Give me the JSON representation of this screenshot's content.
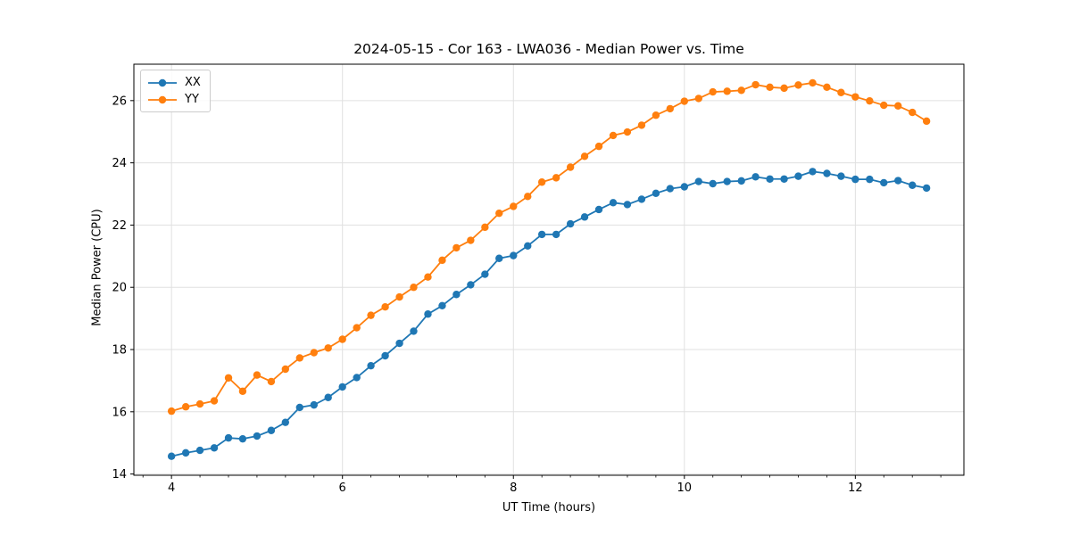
{
  "chart_data": {
    "type": "line",
    "title": "2024-05-15 - Cor 163 - LWA036 - Median Power vs. Time",
    "xlabel": "UT Time (hours)",
    "ylabel": "Median Power (CPU)",
    "xlim": [
      3.56,
      13.27
    ],
    "ylim": [
      13.96,
      27.17
    ],
    "xticks": [
      4,
      6,
      8,
      10,
      12
    ],
    "yticks": [
      14,
      16,
      18,
      20,
      22,
      24,
      26
    ],
    "minor_xtick_step": 0.3333,
    "grid": true,
    "grid_color": "#e0e0e0",
    "legend_position": "upper-left",
    "x": [
      4.0,
      4.167,
      4.333,
      4.5,
      4.667,
      4.833,
      5.0,
      5.167,
      5.333,
      5.5,
      5.667,
      5.833,
      6.0,
      6.167,
      6.333,
      6.5,
      6.667,
      6.833,
      7.0,
      7.167,
      7.333,
      7.5,
      7.667,
      7.833,
      8.0,
      8.167,
      8.333,
      8.5,
      8.667,
      8.833,
      9.0,
      9.167,
      9.333,
      9.5,
      9.667,
      9.833,
      10.0,
      10.167,
      10.333,
      10.5,
      10.667,
      10.833,
      11.0,
      11.167,
      11.333,
      11.5,
      11.667,
      11.833,
      12.0,
      12.167,
      12.333,
      12.5,
      12.667,
      12.833
    ],
    "series": [
      {
        "name": "XX",
        "color": "#1f77b4",
        "marker": "circle",
        "values": [
          14.57,
          14.68,
          14.76,
          14.84,
          15.16,
          15.13,
          15.22,
          15.4,
          15.66,
          16.14,
          16.22,
          16.46,
          16.8,
          17.1,
          17.48,
          17.8,
          18.2,
          18.59,
          19.14,
          19.41,
          19.77,
          20.08,
          20.42,
          20.93,
          21.02,
          21.33,
          21.7,
          21.7,
          22.04,
          22.26,
          22.5,
          22.72,
          22.66,
          22.83,
          23.02,
          23.17,
          23.23,
          23.4,
          23.33,
          23.4,
          23.42,
          23.55,
          23.48,
          23.48,
          23.57,
          23.72,
          23.66,
          23.57,
          23.47,
          23.47,
          23.36,
          23.43,
          23.28,
          23.19
        ]
      },
      {
        "name": "YY",
        "color": "#ff7f0e",
        "marker": "circle",
        "values": [
          16.02,
          16.16,
          16.25,
          16.35,
          17.09,
          16.66,
          17.18,
          16.97,
          17.37,
          17.73,
          17.9,
          18.05,
          18.33,
          18.7,
          19.1,
          19.37,
          19.69,
          20.0,
          20.33,
          20.87,
          21.27,
          21.51,
          21.93,
          22.38,
          22.6,
          22.92,
          23.38,
          23.52,
          23.86,
          24.21,
          24.53,
          24.88,
          24.99,
          25.21,
          25.53,
          25.74,
          25.98,
          26.07,
          26.28,
          26.3,
          26.33,
          26.51,
          26.43,
          26.4,
          26.5,
          26.57,
          26.43,
          26.26,
          26.12,
          25.99,
          25.85,
          25.83,
          25.62,
          25.34
        ]
      }
    ]
  }
}
